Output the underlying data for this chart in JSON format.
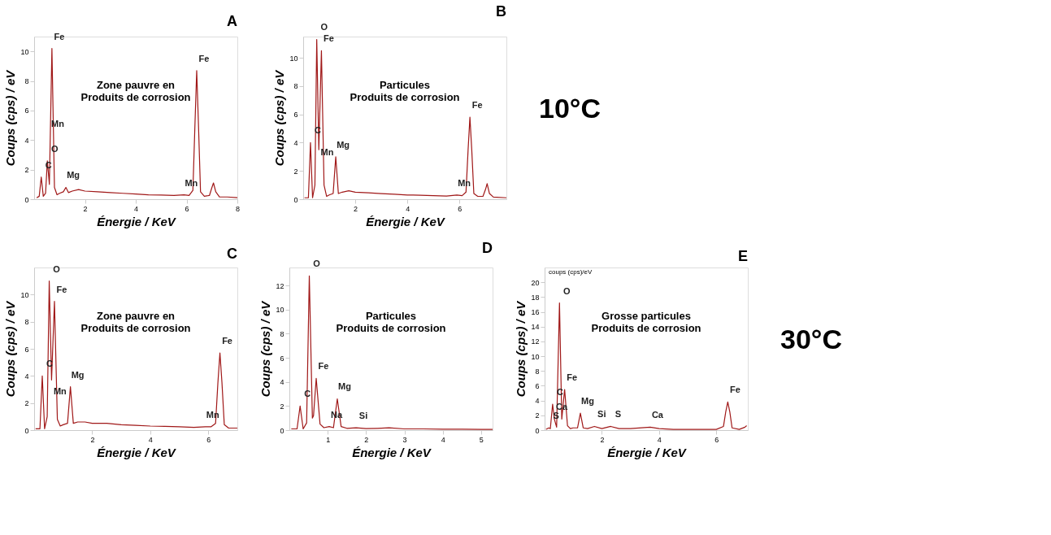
{
  "chart_data": [
    {
      "type": "line",
      "title": "A",
      "xlabel": "Énergie / KeV",
      "ylabel": "Coups (cps) / eV",
      "xlim": [
        0,
        8
      ],
      "ylim": [
        0,
        11
      ],
      "xticks": [
        2,
        4,
        6,
        8
      ],
      "yticks": [
        0,
        2,
        4,
        6,
        8,
        10
      ],
      "grid": false,
      "x": [
        0.1,
        0.2,
        0.28,
        0.36,
        0.45,
        0.52,
        0.6,
        0.7,
        0.8,
        0.9,
        1.0,
        1.15,
        1.25,
        1.35,
        1.5,
        1.75,
        2.0,
        2.5,
        3.0,
        3.5,
        4.0,
        4.5,
        5.0,
        5.5,
        5.9,
        6.1,
        6.25,
        6.33,
        6.4,
        6.47,
        6.55,
        6.7,
        6.9,
        7.0,
        7.06,
        7.15,
        7.3,
        7.6,
        8.0
      ],
      "series": [
        {
          "color": "#a01818",
          "values": [
            0.1,
            0.2,
            1.5,
            0.2,
            0.4,
            2.6,
            1.0,
            10.2,
            0.8,
            0.3,
            0.4,
            0.5,
            0.8,
            0.45,
            0.55,
            0.65,
            0.55,
            0.5,
            0.45,
            0.4,
            0.35,
            0.3,
            0.28,
            0.25,
            0.3,
            0.25,
            0.6,
            5,
            8.7,
            5,
            0.5,
            0.2,
            0.25,
            0.8,
            1.1,
            0.5,
            0.15,
            0.15,
            0.1
          ]
        }
      ],
      "annotations": [
        "Zone pauvre en\nProduits de corrosion",
        {
          "text": "Fe",
          "x": 0.7,
          "y": 10.2
        },
        {
          "text": "Fe",
          "x": 6.4,
          "y": 8.7
        },
        {
          "text": "Mn",
          "x": 0.64,
          "y": 4.3
        },
        {
          "text": "O",
          "x": 0.52,
          "y": 2.6
        },
        {
          "text": "Mg",
          "x": 1.25,
          "y": 0.8
        },
        {
          "text": "Mn",
          "x": 5.9,
          "y": 0.3
        },
        {
          "text": "C",
          "x": 0.28,
          "y": 1.5
        }
      ]
    },
    {
      "type": "line",
      "title": "B",
      "xlabel": "Énergie / KeV",
      "ylabel": "Coups (cps) / eV",
      "xlim": [
        0,
        7.8
      ],
      "ylim": [
        0,
        11.5
      ],
      "xticks": [
        2,
        4,
        6
      ],
      "yticks": [
        0,
        2,
        4,
        6,
        8,
        10
      ],
      "grid": false,
      "x": [
        0.05,
        0.2,
        0.28,
        0.36,
        0.45,
        0.52,
        0.6,
        0.7,
        0.8,
        0.9,
        1.0,
        1.15,
        1.25,
        1.35,
        1.5,
        1.75,
        2.0,
        2.5,
        3.0,
        3.5,
        4.0,
        4.5,
        5.0,
        5.5,
        5.9,
        6.1,
        6.25,
        6.33,
        6.4,
        6.47,
        6.55,
        6.7,
        6.9,
        7.0,
        7.06,
        7.15,
        7.3,
        7.8
      ],
      "series": [
        {
          "color": "#a01818",
          "values": [
            0.1,
            0.1,
            4.0,
            0.1,
            1.0,
            11.3,
            3.5,
            10.5,
            1.0,
            0.2,
            0.3,
            0.4,
            3.0,
            0.4,
            0.5,
            0.6,
            0.5,
            0.45,
            0.4,
            0.35,
            0.3,
            0.28,
            0.25,
            0.22,
            0.3,
            0.25,
            0.5,
            3.5,
            5.8,
            3.5,
            0.4,
            0.2,
            0.2,
            0.7,
            1.1,
            0.4,
            0.15,
            0.1
          ]
        }
      ],
      "annotations": [
        "Particules\nProduits de corrosion",
        "10°C",
        {
          "text": "O",
          "x": 0.52,
          "y": 11.3
        },
        {
          "text": "Fe",
          "x": 0.7,
          "y": 10.5
        },
        {
          "text": "Fe",
          "x": 6.4,
          "y": 5.8
        },
        {
          "text": "Mg",
          "x": 1.25,
          "y": 3.0
        },
        {
          "text": "Mn",
          "x": 0.64,
          "y": 2.5
        },
        {
          "text": "Mn",
          "x": 5.9,
          "y": 0.3
        },
        {
          "text": "C",
          "x": 0.28,
          "y": 4.0
        }
      ]
    },
    {
      "type": "line",
      "title": "C",
      "xlabel": "Énergie / KeV",
      "ylabel": "Coups (cps) / eV",
      "xlim": [
        0,
        7
      ],
      "ylim": [
        0,
        12
      ],
      "xticks": [
        2,
        4,
        6
      ],
      "yticks": [
        0,
        2,
        4,
        6,
        8,
        10
      ],
      "grid": false,
      "x": [
        0.05,
        0.2,
        0.28,
        0.36,
        0.45,
        0.52,
        0.6,
        0.7,
        0.8,
        0.9,
        1.0,
        1.15,
        1.25,
        1.35,
        1.5,
        1.75,
        2.0,
        2.5,
        3.0,
        3.5,
        4.0,
        4.5,
        5.0,
        5.5,
        5.9,
        6.1,
        6.25,
        6.33,
        6.4,
        6.47,
        6.55,
        6.7,
        7.0
      ],
      "series": [
        {
          "color": "#a01818",
          "values": [
            0.1,
            0.1,
            4.0,
            0.1,
            1.0,
            11.0,
            3.7,
            9.5,
            0.8,
            0.3,
            0.4,
            0.5,
            3.2,
            0.5,
            0.6,
            0.6,
            0.5,
            0.5,
            0.4,
            0.35,
            0.3,
            0.28,
            0.25,
            0.2,
            0.25,
            0.25,
            0.5,
            3.5,
            5.7,
            3.5,
            0.4,
            0.15,
            0.15
          ]
        }
      ],
      "annotations": [
        "Zone pauvre en\nProduits de corrosion",
        {
          "text": "O",
          "x": 0.52,
          "y": 11.0
        },
        {
          "text": "Fe",
          "x": 0.7,
          "y": 9.5
        },
        {
          "text": "Fe",
          "x": 6.4,
          "y": 5.7
        },
        {
          "text": "Mg",
          "x": 1.25,
          "y": 3.2
        },
        {
          "text": "Mn",
          "x": 0.64,
          "y": 2.0
        },
        {
          "text": "Mn",
          "x": 5.9,
          "y": 0.25
        },
        {
          "text": "C",
          "x": 0.28,
          "y": 4.0
        }
      ]
    },
    {
      "type": "line",
      "title": "D",
      "xlabel": "Énergie / KeV",
      "ylabel": "Coups (cps) / eV",
      "xlim": [
        0,
        5.3
      ],
      "ylim": [
        0,
        13.5
      ],
      "xticks": [
        1,
        2,
        3,
        4,
        5
      ],
      "yticks": [
        0,
        2,
        4,
        6,
        8,
        10,
        12
      ],
      "grid": false,
      "x": [
        0.05,
        0.2,
        0.28,
        0.36,
        0.45,
        0.52,
        0.6,
        0.63,
        0.7,
        0.8,
        0.9,
        1.04,
        1.15,
        1.25,
        1.35,
        1.5,
        1.74,
        2.0,
        2.3,
        2.6,
        3.0,
        3.5,
        4.0,
        4.5,
        5.0,
        5.3
      ],
      "series": [
        {
          "color": "#a01818",
          "values": [
            0.1,
            0.1,
            2.0,
            0.1,
            0.6,
            12.8,
            1.0,
            1.2,
            4.3,
            0.5,
            0.2,
            0.3,
            0.2,
            2.6,
            0.3,
            0.15,
            0.2,
            0.12,
            0.15,
            0.2,
            0.1,
            0.1,
            0.08,
            0.08,
            0.06,
            0.06
          ]
        }
      ],
      "annotations": [
        "Particules\nProduits de corrosion",
        {
          "text": "O",
          "x": 0.52,
          "y": 12.8
        },
        {
          "text": "Fe",
          "x": 0.7,
          "y": 4.3
        },
        {
          "text": "Mg",
          "x": 1.25,
          "y": 2.6
        },
        {
          "text": "Si",
          "x": 1.74,
          "y": 0.2
        },
        {
          "text": "Na",
          "x": 1.04,
          "y": 0.3
        },
        {
          "text": "C",
          "x": 0.28,
          "y": 2.0
        }
      ]
    },
    {
      "type": "line",
      "title": "E",
      "xlabel": "Énergie / KeV",
      "ylabel": "Coups (cps) / eV",
      "xlim": [
        0,
        7.1
      ],
      "ylim": [
        0,
        22
      ],
      "xticks": [
        2,
        4,
        6
      ],
      "yticks": [
        0,
        2,
        4,
        6,
        8,
        10,
        12,
        14,
        16,
        18,
        20
      ],
      "grid": false,
      "x": [
        0.05,
        0.15,
        0.2,
        0.28,
        0.34,
        0.42,
        0.52,
        0.6,
        0.7,
        0.8,
        0.9,
        1.0,
        1.15,
        1.25,
        1.35,
        1.5,
        1.74,
        2.0,
        2.31,
        2.6,
        3.0,
        3.69,
        4.0,
        4.5,
        5.0,
        5.5,
        6.0,
        6.25,
        6.33,
        6.4,
        6.47,
        6.55,
        6.8,
        7.0,
        7.06
      ],
      "series": [
        {
          "color": "#a01818",
          "values": [
            0.1,
            0.3,
            0.2,
            3.5,
            1.5,
            0.4,
            17.2,
            1.5,
            5.5,
            0.6,
            0.2,
            0.3,
            0.3,
            2.3,
            0.3,
            0.2,
            0.5,
            0.2,
            0.5,
            0.2,
            0.2,
            0.4,
            0.2,
            0.1,
            0.1,
            0.1,
            0.1,
            0.5,
            2.5,
            3.8,
            2.5,
            0.3,
            0.1,
            0.4,
            0.6
          ]
        }
      ],
      "annotations": [
        "Grosse particules\nProduits de corrosion",
        "30°C",
        "coups (cps)/eV",
        {
          "text": "O",
          "x": 0.52,
          "y": 17.2
        },
        {
          "text": "Fe",
          "x": 0.7,
          "y": 5.5
        },
        {
          "text": "Fe",
          "x": 6.4,
          "y": 3.8
        },
        {
          "text": "Mg",
          "x": 1.25,
          "y": 2.3
        },
        {
          "text": "Ca",
          "x": 0.34,
          "y": 1.5
        },
        {
          "text": "Ca",
          "x": 3.69,
          "y": 0.4
        },
        {
          "text": "C",
          "x": 0.28,
          "y": 3.5
        },
        {
          "text": "Si",
          "x": 1.74,
          "y": 0.5
        },
        {
          "text": "S",
          "x": 2.31,
          "y": 0.5
        },
        {
          "text": "S",
          "x": 0.15,
          "y": 0.3
        }
      ]
    }
  ]
}
